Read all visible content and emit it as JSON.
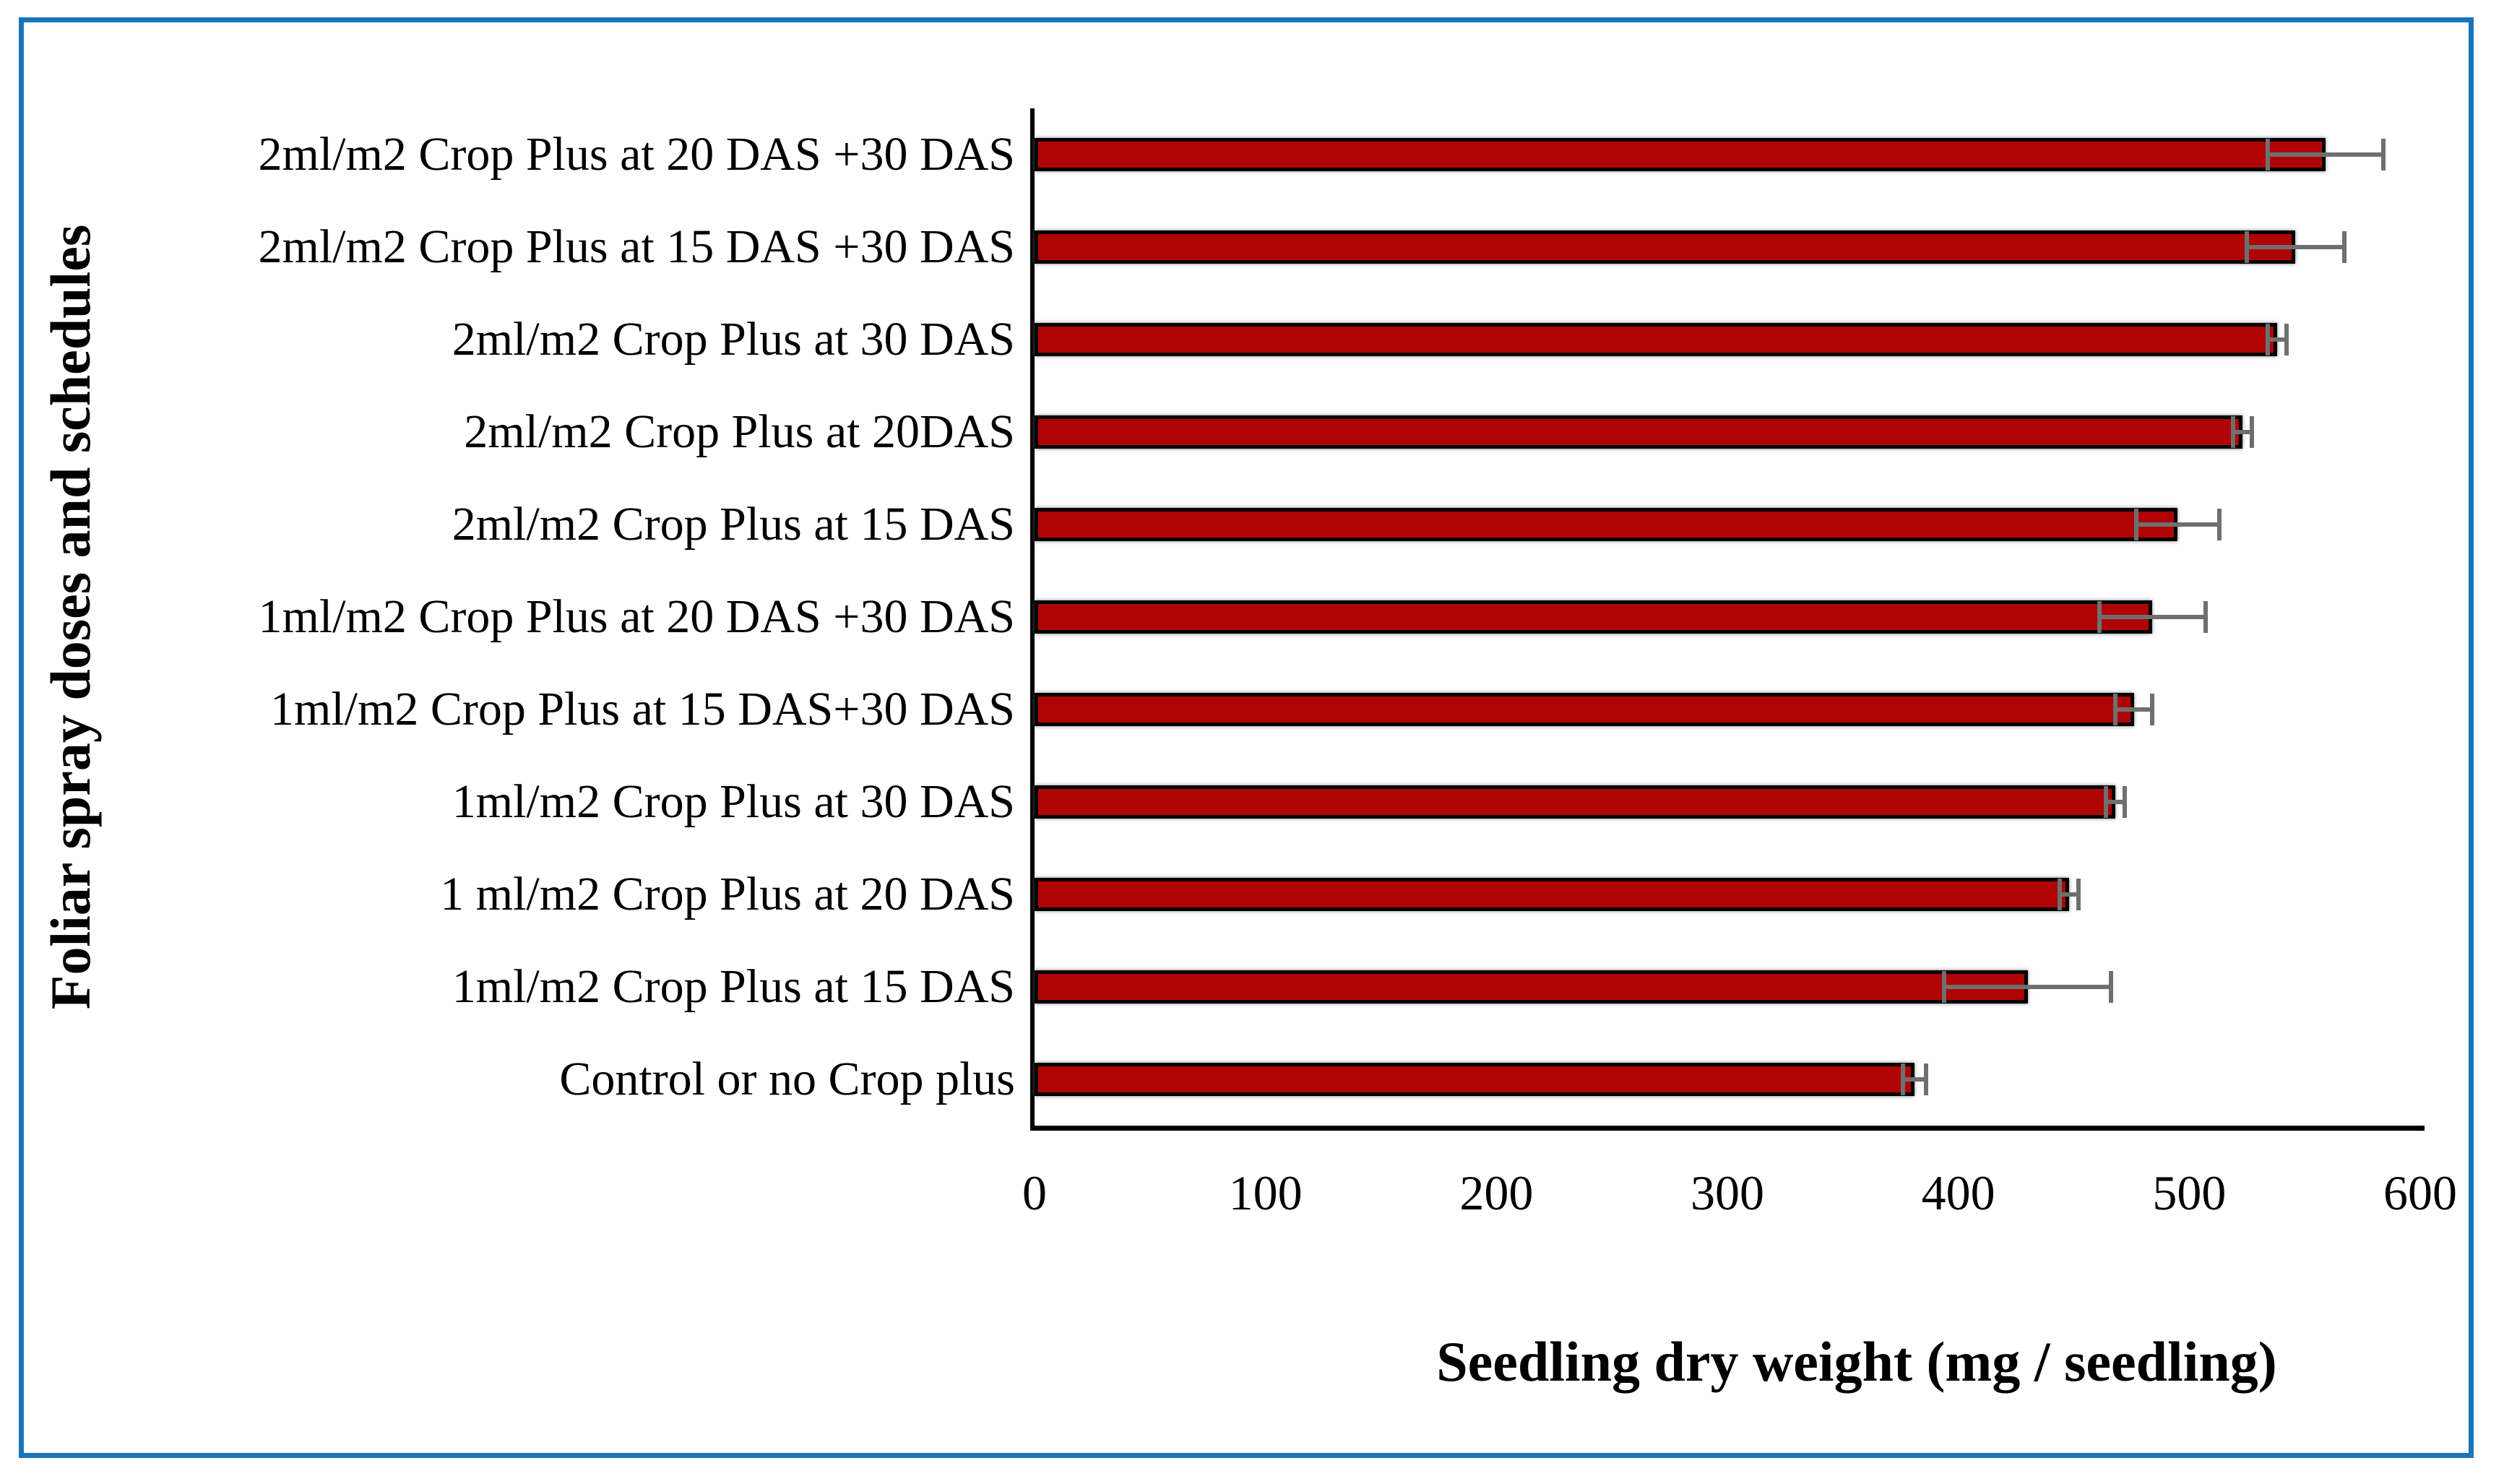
{
  "chart_data": {
    "type": "bar",
    "orientation": "horizontal",
    "title": "",
    "categories": [
      "2ml/m2 Crop Plus at 20 DAS +30 DAS",
      "2ml/m2 Crop Plus at 15 DAS +30 DAS",
      "2ml/m2 Crop Plus at 30 DAS",
      "2ml/m2 Crop Plus at 20DAS",
      "2ml/m2 Crop Plus at 15 DAS",
      "1ml/m2 Crop Plus at 20 DAS +30 DAS",
      "1ml/m2 Crop Plus at 15 DAS+30 DAS",
      "1ml/m2 Crop Plus at 30 DAS",
      "1 ml/m2 Crop Plus at 20 DAS",
      "1ml/m2 Crop Plus at 15 DAS",
      "Control or no Crop plus"
    ],
    "values": [
      559,
      546,
      538,
      523,
      495,
      484,
      476,
      468,
      448,
      430,
      381
    ],
    "series": [
      {
        "name": "Seedling dry weight",
        "values": [
          559,
          546,
          538,
          523,
          495,
          484,
          476,
          468,
          448,
          430,
          381
        ],
        "error_bars": [
          25,
          21,
          4,
          4,
          18,
          23,
          8,
          4,
          4,
          36,
          5
        ]
      }
    ],
    "value_order_note": "top to bottom as displayed",
    "xlabel": "Seedling dry weight (mg / seedling)",
    "ylabel": "Foliar spray doses and schedules",
    "xlim": [
      0,
      600
    ],
    "x_ticks": [
      0,
      100,
      200,
      300,
      400,
      500,
      600
    ],
    "grid": false,
    "legend": false
  },
  "colors": {
    "bar_fill": "#B00404",
    "bar_border": "#000000",
    "error_bar": "#6F6F6F",
    "frame_border": "#1B75BC",
    "axis_line": "#000000",
    "background": "#FFFFFF"
  }
}
